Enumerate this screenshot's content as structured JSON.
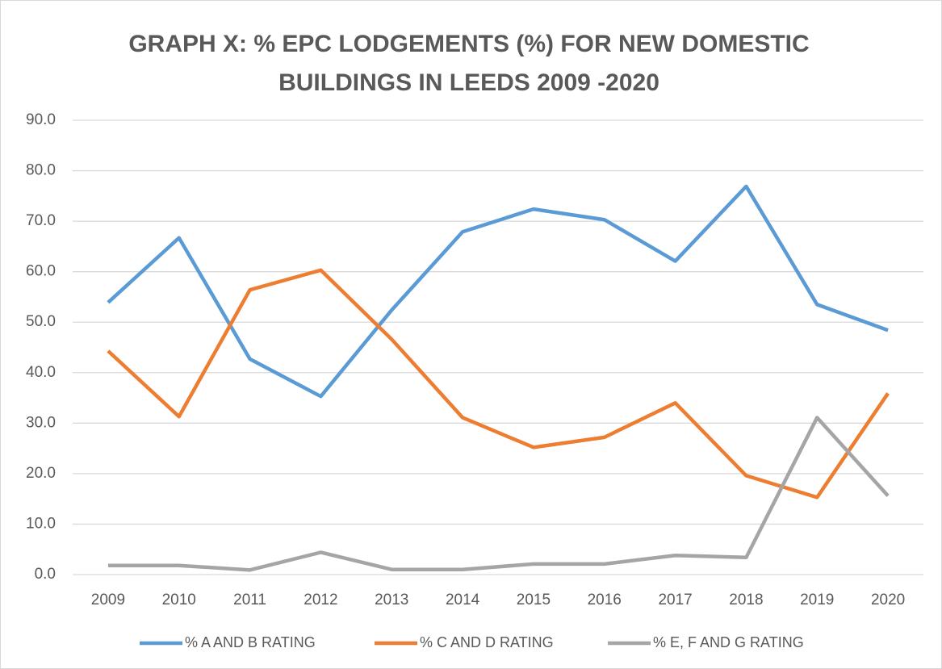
{
  "chart_data": {
    "type": "line",
    "title": "GRAPH X: % EPC LODGEMENTS (%) FOR NEW DOMESTIC BUILDINGS IN LEEDS 2009 -2020",
    "categories": [
      "2009",
      "2010",
      "2011",
      "2012",
      "2013",
      "2014",
      "2015",
      "2016",
      "2017",
      "2018",
      "2019",
      "2020"
    ],
    "series": [
      {
        "name": "% A AND B RATING",
        "color": "#5b9bd5",
        "values": [
          53.9,
          66.7,
          42.7,
          35.3,
          52.4,
          67.9,
          72.4,
          70.3,
          62.1,
          76.9,
          53.5,
          48.4
        ]
      },
      {
        "name": "% C AND D RATING",
        "color": "#ed7d31",
        "values": [
          44.3,
          31.3,
          56.4,
          60.3,
          46.6,
          31.1,
          25.2,
          27.2,
          34.0,
          19.6,
          15.3,
          35.9
        ]
      },
      {
        "name": "% E, F AND G RATING",
        "color": "#a5a5a5",
        "values": [
          1.8,
          1.8,
          0.9,
          4.4,
          1.0,
          1.0,
          2.1,
          2.1,
          3.8,
          3.4,
          31.1,
          15.6
        ]
      }
    ],
    "ylim": [
      0,
      90
    ],
    "yticks": [
      {
        "value": 0,
        "label": "0.0"
      },
      {
        "value": 10,
        "label": "10.0"
      },
      {
        "value": 20,
        "label": "20.0"
      },
      {
        "value": 30,
        "label": "30.0"
      },
      {
        "value": 40,
        "label": "40.0"
      },
      {
        "value": 50,
        "label": "50.0"
      },
      {
        "value": 60,
        "label": "60.0"
      },
      {
        "value": 70,
        "label": "70.0"
      },
      {
        "value": 80,
        "label": "80.0"
      },
      {
        "value": 90,
        "label": "90.0"
      }
    ],
    "grid": true,
    "legend": "bottom"
  }
}
